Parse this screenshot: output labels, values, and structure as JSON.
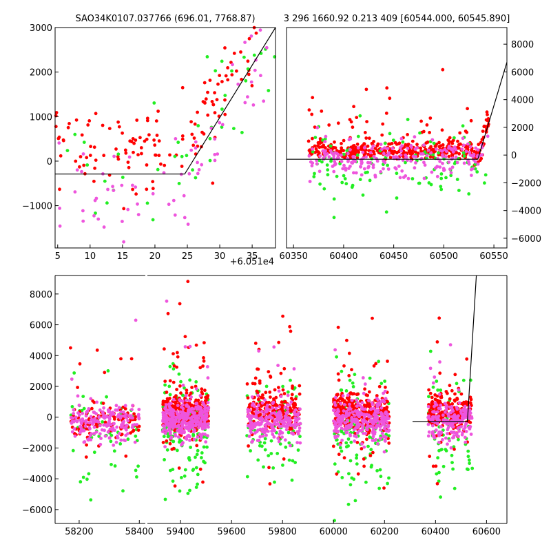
{
  "chart_data": [
    {
      "type": "scatter",
      "title": "SAO34K0107.037766 (696.01, 7768.87)",
      "offset_label": "+6.051e4",
      "xlim": [
        4.6,
        38.6
      ],
      "ylim": [
        -1950,
        3000
      ],
      "xticks": [
        5,
        10,
        15,
        20,
        25,
        30,
        35
      ],
      "yticks": [
        -1000,
        0,
        1000,
        2000,
        3000
      ],
      "ytick_labels": [
        "−1000",
        "0",
        "1000",
        "2000",
        "3000"
      ],
      "model_line": {
        "x": [
          4.6,
          24.6,
          38.6
        ],
        "y": [
          -290,
          -290,
          3000
        ]
      },
      "series_colors": {
        "red": "#ff0000",
        "green": "#22ee22",
        "pink": "#ee55dd"
      }
    },
    {
      "type": "scatter",
      "title": "3 296 1660.92 0.213 409 [60544.000, 60545.890]",
      "xlim": [
        60343,
        60563
      ],
      "ylim": [
        -6700,
        9200
      ],
      "xticks": [
        60350,
        60400,
        60450,
        60500,
        60550
      ],
      "yticks": [
        -6000,
        -4000,
        -2000,
        0,
        2000,
        4000,
        6000,
        8000
      ],
      "ytick_labels": [
        "−6000",
        "−4000",
        "−2000",
        "0",
        "2000",
        "4000",
        "6000",
        "8000"
      ],
      "model_line": {
        "x": [
          60343,
          60534,
          60563
        ],
        "y": [
          -300,
          -300,
          6700
        ]
      }
    },
    {
      "type": "scatter",
      "xlim": [
        58120,
        60680
      ],
      "ylim": [
        -6900,
        9200
      ],
      "xticks": [
        58200,
        58400,
        59400,
        59600,
        59800,
        60000,
        60200,
        60400,
        60600
      ],
      "yticks": [
        -6000,
        -4000,
        -2000,
        0,
        2000,
        4000,
        6000,
        8000
      ],
      "ytick_labels": [
        "−6000",
        "−4000",
        "−2000",
        "0",
        "2000",
        "4000",
        "6000",
        "8000"
      ],
      "axis_break": [
        58420,
        59270
      ],
      "model_line": {
        "x": [
          60310,
          60525,
          60560
        ],
        "y": [
          -300,
          -300,
          9200
        ]
      },
      "seasons": [
        {
          "x": [
            58170,
            58400
          ],
          "n_red": 110,
          "n_green": 60,
          "n_pink": 170,
          "red_mean": -150,
          "green_mean": -900,
          "pink_mean": -300
        },
        {
          "x": [
            59330,
            59510
          ],
          "n_red": 320,
          "n_green": 130,
          "n_pink": 320,
          "red_mean": 350,
          "green_mean": -800,
          "pink_mean": -200
        },
        {
          "x": [
            59660,
            59870
          ],
          "n_red": 230,
          "n_green": 80,
          "n_pink": 220,
          "red_mean": 350,
          "green_mean": -700,
          "pink_mean": -250
        },
        {
          "x": [
            60000,
            60220
          ],
          "n_red": 320,
          "n_green": 120,
          "n_pink": 280,
          "red_mean": 400,
          "green_mean": -900,
          "pink_mean": -150
        },
        {
          "x": [
            60370,
            60545
          ],
          "n_red": 200,
          "n_green": 70,
          "n_pink": 180,
          "red_mean": 400,
          "green_mean": -900,
          "pink_mean": -300
        }
      ]
    }
  ]
}
